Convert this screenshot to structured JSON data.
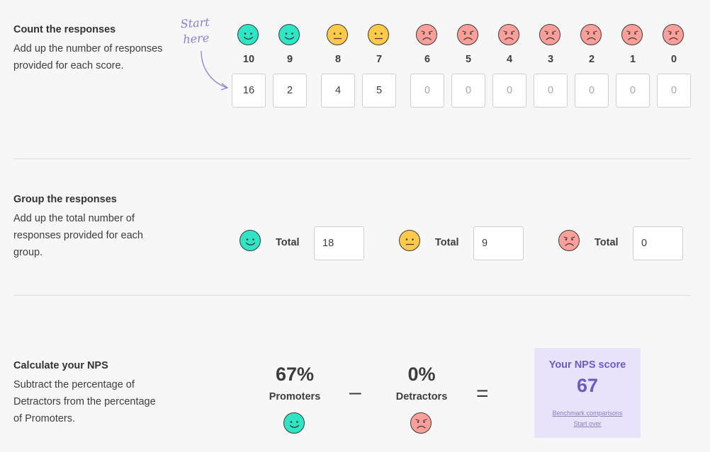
{
  "colors": {
    "promoter": "#2ee6c4",
    "passive": "#ffc94a",
    "detractor": "#ff9f9a",
    "accent": "#6e5bbd",
    "card_bg": "#e9e2fb"
  },
  "count_section": {
    "title": "Count the responses",
    "description": "Add up the number of responses provided for each score.",
    "start_hint_line1": "Start",
    "start_hint_line2": "here",
    "scores": [
      {
        "label": "10",
        "value": "16",
        "group": "promoter"
      },
      {
        "label": "9",
        "value": "2",
        "group": "promoter"
      },
      {
        "label": "8",
        "value": "4",
        "group": "passive"
      },
      {
        "label": "7",
        "value": "5",
        "group": "passive"
      },
      {
        "label": "6",
        "value": "0",
        "group": "detractor"
      },
      {
        "label": "5",
        "value": "0",
        "group": "detractor"
      },
      {
        "label": "4",
        "value": "0",
        "group": "detractor"
      },
      {
        "label": "3",
        "value": "0",
        "group": "detractor"
      },
      {
        "label": "2",
        "value": "0",
        "group": "detractor"
      },
      {
        "label": "1",
        "value": "0",
        "group": "detractor"
      },
      {
        "label": "0",
        "value": "0",
        "group": "detractor"
      }
    ]
  },
  "group_section": {
    "title": "Group the responses",
    "description": "Add up the total number of responses provided for each group.",
    "groups": [
      {
        "icon": "happy-face-icon",
        "label": "Total",
        "value": "18"
      },
      {
        "icon": "neutral-face-icon",
        "label": "Total",
        "value": "9"
      },
      {
        "icon": "sad-face-icon",
        "label": "Total",
        "value": "0"
      }
    ]
  },
  "calc_section": {
    "title": "Calculate your NPS",
    "description": "Subtract the percentage of Detractors from the percentage of Promoters.",
    "promoters_pct": "67%",
    "promoters_label": "Promoters",
    "minus": "–",
    "detractors_pct": "0%",
    "detractors_label": "Detractors",
    "equals": "=",
    "result_title": "Your NPS score",
    "result_value": "67",
    "benchmark_link": "Benchmark comparisons",
    "start_over_link": "Start over"
  }
}
